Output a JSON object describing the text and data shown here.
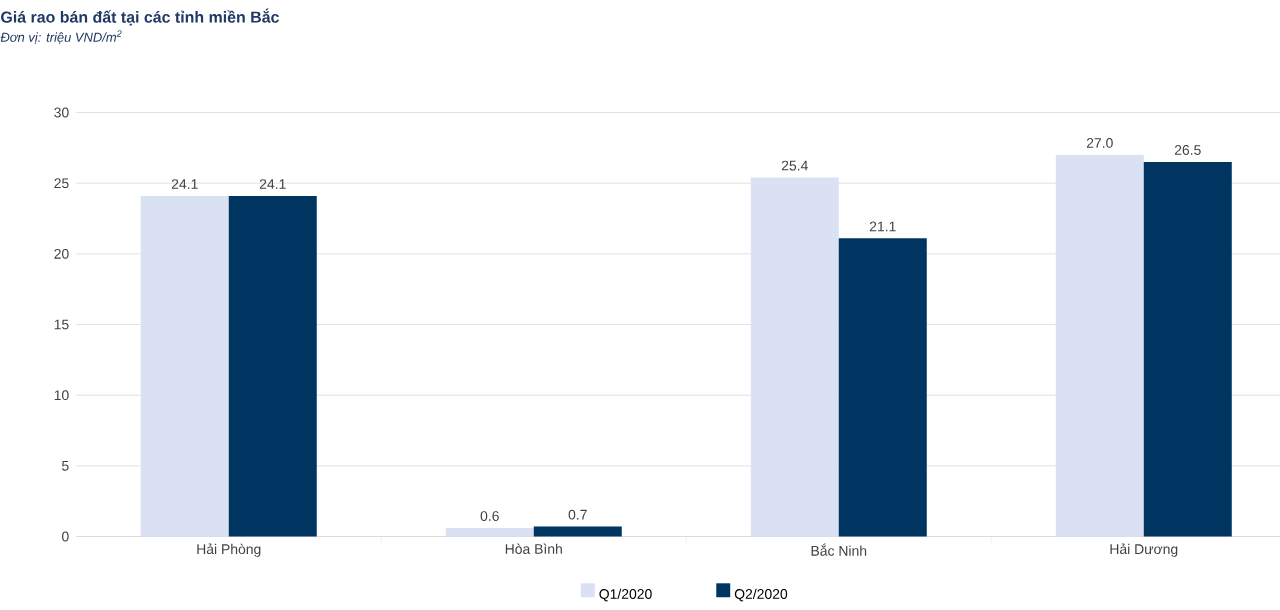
{
  "chart_data": {
    "type": "bar",
    "title": "Giá rao bán đất tại các tỉnh miền Bắc",
    "subtitle": "Đơn vị: triệu VND/m$^{2}$",
    "categories": [
      "Hải Phòng",
      "Hòa Bình",
      "Bắc Ninh",
      "Hải Dương"
    ],
    "series": [
      {
        "name": "Q1/2020",
        "color": "#d9e1f2",
        "values": [
          24.1,
          0.6,
          25.4,
          27.0
        ],
        "value_labels": [
          "24.1",
          "0.6",
          "25.4",
          "27.0"
        ]
      },
      {
        "name": "Q2/2020",
        "color": "#003461",
        "values": [
          24.1,
          0.7,
          21.1,
          26.5
        ],
        "value_labels": [
          "24.1",
          "0.7",
          "21.1",
          "26.5"
        ]
      }
    ],
    "ylim": [
      0,
      30
    ],
    "yticks": [
      0,
      5,
      10,
      15,
      20,
      25,
      30
    ],
    "grid": "y",
    "legend": "bottom"
  }
}
